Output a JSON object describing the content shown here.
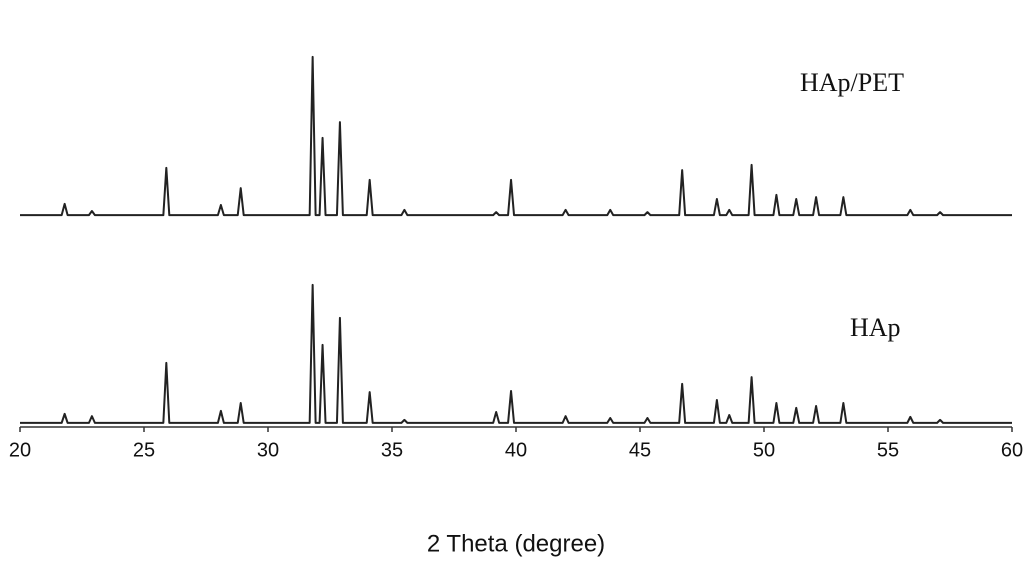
{
  "chart_data": {
    "type": "line",
    "x_label": "2 Theta (degree)",
    "x": [
      20,
      21.68,
      21.8,
      21.92,
      22.78,
      22.9,
      23.02,
      25.78,
      25.9,
      26.02,
      27.98,
      28.1,
      28.22,
      28.78,
      28.9,
      29.02,
      31.68,
      31.8,
      31.92,
      32.08,
      32.2,
      32.32,
      32.78,
      32.9,
      33.02,
      33.98,
      34.1,
      34.22,
      35.38,
      35.5,
      35.62,
      39.08,
      39.2,
      39.32,
      39.68,
      39.8,
      39.92,
      41.88,
      42,
      42.12,
      43.68,
      43.8,
      43.92,
      45.18,
      45.3,
      45.42,
      46.58,
      46.7,
      46.82,
      47.98,
      48.1,
      48.22,
      48.48,
      48.6,
      48.72,
      49.38,
      49.5,
      49.62,
      50.38,
      50.5,
      50.62,
      51.18,
      51.3,
      51.42,
      51.98,
      52.1,
      52.22,
      53.08,
      53.2,
      53.32,
      55.78,
      55.9,
      56.02,
      56.98,
      57.1,
      57.22,
      60
    ],
    "series": [
      {
        "name": "HAp/PET",
        "color": "#222222",
        "values": [
          56.5,
          56.5,
          59.5,
          56.5,
          56.5,
          57.6,
          56.5,
          56.5,
          69.1,
          56.5,
          56.5,
          59.2,
          56.5,
          56.5,
          63.7,
          56.5,
          56.5,
          98.7,
          56.5,
          56.5,
          77.1,
          56.5,
          56.5,
          81.3,
          56.5,
          56.5,
          65.9,
          56.5,
          56.5,
          57.9,
          56.5,
          56.5,
          57.3,
          56.5,
          56.5,
          65.9,
          56.5,
          56.5,
          57.9,
          56.5,
          56.5,
          57.9,
          56.5,
          56.5,
          57.3,
          56.5,
          56.5,
          68.5,
          56.5,
          56.5,
          60.8,
          56.5,
          56.5,
          57.9,
          56.5,
          56.5,
          69.9,
          56.5,
          56.5,
          61.9,
          56.5,
          56.5,
          60.8,
          56.5,
          56.5,
          61.3,
          56.5,
          56.5,
          61.3,
          56.5,
          56.5,
          57.9,
          56.5,
          56.5,
          57.3,
          56.5,
          56.5
        ]
      },
      {
        "name": "HAp",
        "color": "#222222",
        "values": [
          1.1,
          1.1,
          3.5,
          1.1,
          1.1,
          2.9,
          1.1,
          1.1,
          17.1,
          1.1,
          1.1,
          4.3,
          1.1,
          1.1,
          6.4,
          1.1,
          1.1,
          37.9,
          1.1,
          1.1,
          21.9,
          1.1,
          1.1,
          29.1,
          1.1,
          1.1,
          9.3,
          1.1,
          1.1,
          1.9,
          1.1,
          1.1,
          4.0,
          1.1,
          1.1,
          9.6,
          1.1,
          1.1,
          2.9,
          1.1,
          1.1,
          2.4,
          1.1,
          1.1,
          2.4,
          1.1,
          1.1,
          11.5,
          1.1,
          1.1,
          7.2,
          1.1,
          1.1,
          3.2,
          1.1,
          1.1,
          13.3,
          1.1,
          1.1,
          6.4,
          1.1,
          1.1,
          5.1,
          1.1,
          1.1,
          5.6,
          1.1,
          1.1,
          6.4,
          1.1,
          1.1,
          2.7,
          1.1,
          1.1,
          1.9,
          1.1,
          1.1
        ]
      }
    ],
    "xlim": [
      20,
      60
    ],
    "xticks": [
      20,
      25,
      30,
      35,
      40,
      45,
      50,
      55,
      60
    ],
    "ylim": [
      0,
      100
    ]
  }
}
